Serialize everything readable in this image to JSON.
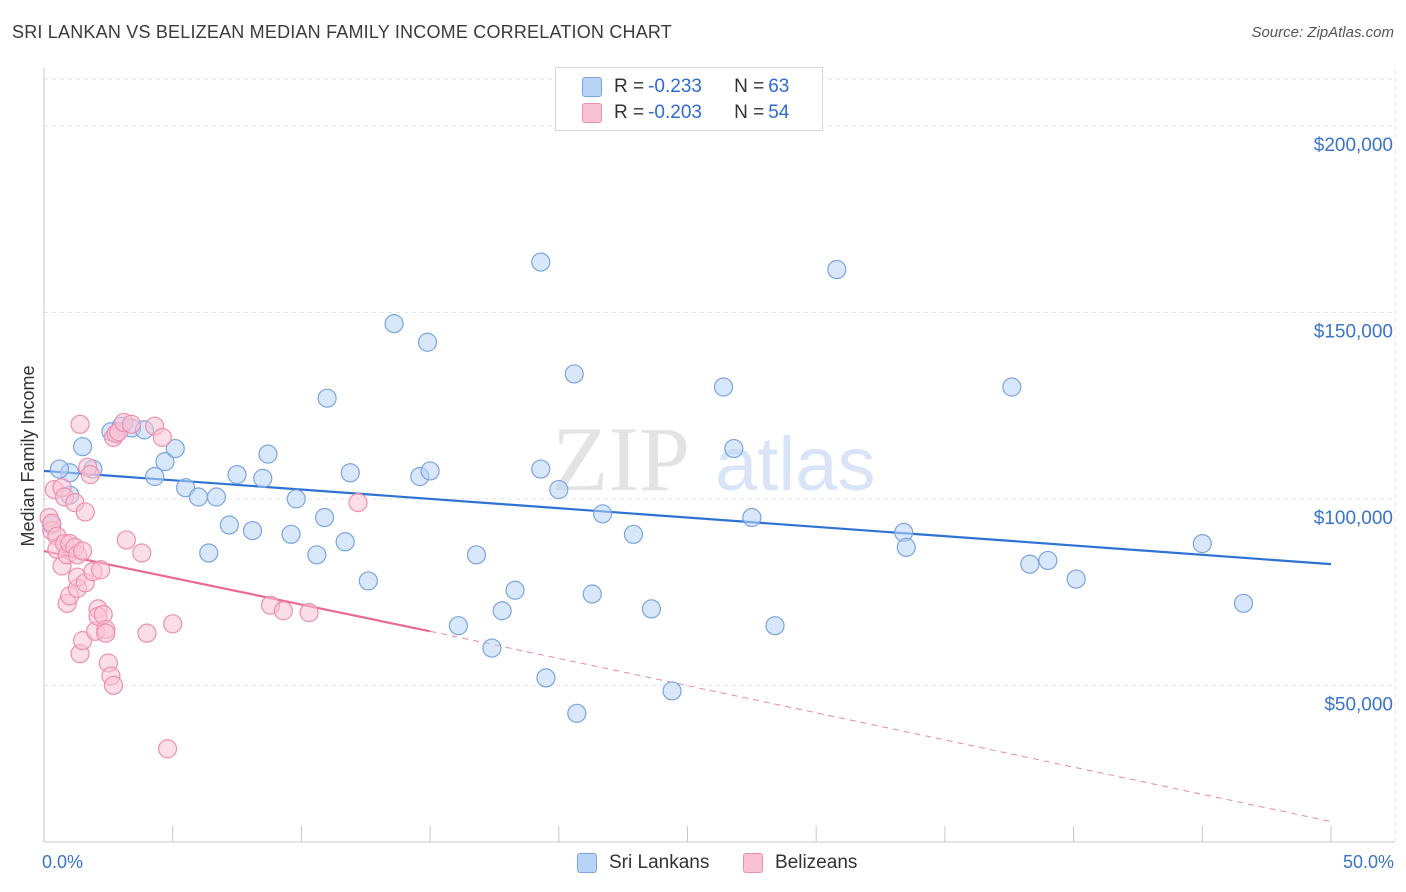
{
  "title": "SRI LANKAN VS BELIZEAN MEDIAN FAMILY INCOME CORRELATION CHART",
  "source": "Source: ZipAtlas.com",
  "watermark": {
    "zip": "ZIP",
    "atlas": "atlas"
  },
  "legend_box": {
    "rows": [
      {
        "r_label": "R = ",
        "r_value": "-0.233",
        "n_label": "N = ",
        "n_value": "63"
      },
      {
        "r_label": "R = ",
        "r_value": "-0.203",
        "n_label": "N = ",
        "n_value": "54"
      }
    ]
  },
  "colors": {
    "blue_fill": "#b9d3f5",
    "blue_stroke": "#7aa5e0",
    "blue_line": "#2f72d4",
    "pink_fill": "#f9c2d3",
    "pink_stroke": "#ee8fae",
    "pink_line": "#e86a96",
    "axis_text": "#3a74c9",
    "grid": "#e3e3e3"
  },
  "chart_data": {
    "type": "scatter",
    "title": "SRI LANKAN VS BELIZEAN MEDIAN FAMILY INCOME CORRELATION CHART",
    "xlabel": "",
    "ylabel": "Median Family Income",
    "x_tick_labels": [
      "0.0%",
      "50.0%"
    ],
    "y_tick_labels": [
      "$50,000",
      "$100,000",
      "$150,000",
      "$200,000"
    ],
    "y_ticks": [
      50000,
      100000,
      150000,
      200000
    ],
    "xlim": [
      0,
      50
    ],
    "ylim": [
      8000,
      215000
    ],
    "grid": true,
    "legend_position": "bottom",
    "series": [
      {
        "name": "Sri Lankans",
        "color": "#7aa5e0",
        "trend": {
          "x": [
            0,
            50
          ],
          "y": [
            107500,
            82500
          ],
          "style": "solid"
        },
        "points": [
          [
            1.0,
            101000
          ],
          [
            1.0,
            107000
          ],
          [
            1.5,
            114000
          ],
          [
            1.9,
            108000
          ],
          [
            2.6,
            118000
          ],
          [
            3.0,
            119500
          ],
          [
            3.4,
            119000
          ],
          [
            3.9,
            118500
          ],
          [
            4.3,
            106000
          ],
          [
            4.7,
            110000
          ],
          [
            5.1,
            113500
          ],
          [
            5.5,
            103000
          ],
          [
            6.0,
            100500
          ],
          [
            6.4,
            85500
          ],
          [
            6.7,
            100500
          ],
          [
            7.2,
            93000
          ],
          [
            7.5,
            106500
          ],
          [
            8.1,
            91500
          ],
          [
            8.5,
            105500
          ],
          [
            8.7,
            112000
          ],
          [
            9.6,
            90500
          ],
          [
            9.8,
            100000
          ],
          [
            10.6,
            85000
          ],
          [
            10.9,
            95000
          ],
          [
            11.0,
            127000
          ],
          [
            11.7,
            88500
          ],
          [
            11.9,
            107000
          ],
          [
            12.6,
            78000
          ],
          [
            13.6,
            147000
          ],
          [
            14.6,
            106000
          ],
          [
            14.9,
            142000
          ],
          [
            15.0,
            107500
          ],
          [
            16.1,
            66000
          ],
          [
            16.8,
            85000
          ],
          [
            17.4,
            60000
          ],
          [
            17.8,
            70000
          ],
          [
            18.3,
            75500
          ],
          [
            19.3,
            108000
          ],
          [
            19.3,
            163500
          ],
          [
            19.5,
            52000
          ],
          [
            20.0,
            102500
          ],
          [
            20.6,
            133500
          ],
          [
            20.7,
            42500
          ],
          [
            21.3,
            74500
          ],
          [
            21.7,
            96000
          ],
          [
            22.9,
            90500
          ],
          [
            23.6,
            70500
          ],
          [
            24.4,
            48500
          ],
          [
            26.4,
            130000
          ],
          [
            26.8,
            113500
          ],
          [
            27.5,
            95000
          ],
          [
            28.4,
            66000
          ],
          [
            30.8,
            161500
          ],
          [
            33.4,
            91000
          ],
          [
            33.5,
            87000
          ],
          [
            37.6,
            130000
          ],
          [
            38.3,
            82500
          ],
          [
            39.0,
            83500
          ],
          [
            40.1,
            78500
          ],
          [
            45.0,
            88000
          ],
          [
            46.6,
            72000
          ],
          [
            0.3,
            93000
          ],
          [
            0.6,
            108000
          ]
        ]
      },
      {
        "name": "Belizeans",
        "color": "#ee8fae",
        "trend": {
          "x": [
            0,
            15
          ],
          "y": [
            86000,
            64500
          ],
          "x_dashed_to": 50,
          "y_dashed_to": 13500
        },
        "points": [
          [
            0.2,
            95000
          ],
          [
            0.3,
            91500
          ],
          [
            0.3,
            93500
          ],
          [
            0.4,
            102500
          ],
          [
            0.5,
            90000
          ],
          [
            0.5,
            86500
          ],
          [
            0.7,
            82000
          ],
          [
            0.7,
            103000
          ],
          [
            0.8,
            100500
          ],
          [
            0.8,
            88000
          ],
          [
            0.9,
            85000
          ],
          [
            0.9,
            72000
          ],
          [
            1.0,
            74000
          ],
          [
            1.0,
            88000
          ],
          [
            1.2,
            99000
          ],
          [
            1.2,
            87000
          ],
          [
            1.3,
            85000
          ],
          [
            1.3,
            76000
          ],
          [
            1.3,
            79000
          ],
          [
            1.4,
            120000
          ],
          [
            1.4,
            58500
          ],
          [
            1.5,
            62000
          ],
          [
            1.5,
            86000
          ],
          [
            1.6,
            96500
          ],
          [
            1.6,
            77500
          ],
          [
            1.7,
            108500
          ],
          [
            1.8,
            106500
          ],
          [
            1.9,
            80500
          ],
          [
            2.0,
            64500
          ],
          [
            2.1,
            70500
          ],
          [
            2.1,
            68500
          ],
          [
            2.2,
            81000
          ],
          [
            2.3,
            69000
          ],
          [
            2.4,
            65000
          ],
          [
            2.4,
            64000
          ],
          [
            2.5,
            56000
          ],
          [
            2.6,
            52500
          ],
          [
            2.7,
            50000
          ],
          [
            2.7,
            116500
          ],
          [
            2.8,
            117500
          ],
          [
            2.9,
            118000
          ],
          [
            3.1,
            120500
          ],
          [
            3.2,
            89000
          ],
          [
            3.4,
            120000
          ],
          [
            3.8,
            85500
          ],
          [
            4.0,
            64000
          ],
          [
            4.3,
            119500
          ],
          [
            4.6,
            116500
          ],
          [
            4.8,
            33000
          ],
          [
            5.0,
            66500
          ],
          [
            8.8,
            71500
          ],
          [
            9.3,
            70000
          ],
          [
            10.3,
            69500
          ],
          [
            12.2,
            99000
          ]
        ]
      }
    ]
  },
  "legend_bottom": {
    "items": [
      "Sri Lankans",
      "Belizeans"
    ]
  }
}
